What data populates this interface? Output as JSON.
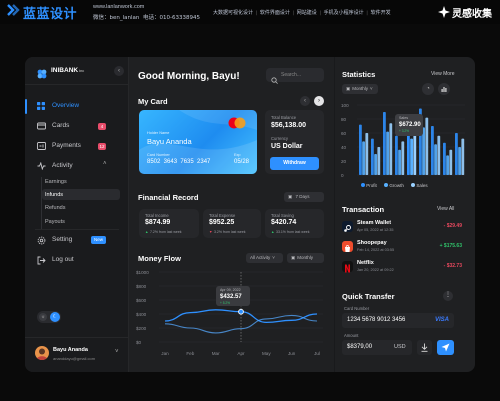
{
  "watermark": {
    "brand_cn": "蓝蓝设计",
    "site": "www.lanlanwork.com",
    "wechat": "微信：ben_lanlan",
    "phone": "电话：010-63338945",
    "services": [
      "大数据可视化设计",
      "软件界面设计",
      "网站建设",
      "手机及小程序设计",
      "软件开发"
    ],
    "right_brand": "灵感收集",
    "colors": {
      "brand": "#2e90ff"
    }
  },
  "brand": {
    "name": "INIBANK",
    "suffix": "inc"
  },
  "sidebar": {
    "items": [
      {
        "label": "Overview",
        "icon": "grid-icon",
        "active": true
      },
      {
        "label": "Cards",
        "icon": "card-icon",
        "badge": "4"
      },
      {
        "label": "Payments",
        "icon": "payment-icon",
        "badge": "12"
      },
      {
        "label": "Activity",
        "icon": "activity-icon"
      }
    ],
    "activity_sub": [
      "Earnings",
      "Infunds",
      "Refunds",
      "Payouts"
    ],
    "settings": {
      "label": "Setting",
      "badge": "New"
    },
    "logout": "Log out",
    "user": {
      "name": "Bayu Ananda",
      "email": "ananddayu@gmail.com"
    }
  },
  "header": {
    "greeting": "Good Morning, Bayu!",
    "search_placeholder": "Search..."
  },
  "mycard": {
    "title": "My Card",
    "holder_label": "Holder Name",
    "holder": "Bayu Ananda",
    "number_label": "Card Number",
    "number": "8502  3643  7635  2347",
    "exp_label": "Exp",
    "exp": "05/28",
    "balance_label": "Total Balance",
    "balance": "$56,138.00",
    "currency_label": "Currency",
    "currency": "US Dollar",
    "withdraw": "Withdraw"
  },
  "financial": {
    "title": "Financial Record",
    "range": "7 Days",
    "items": [
      {
        "label": "Total Income",
        "value": "$874.99",
        "delta": "7.2% from last week",
        "up": true
      },
      {
        "label": "Total Expense",
        "value": "$952.25",
        "delta": "3.2% from last week",
        "up": false
      },
      {
        "label": "Total Saving",
        "value": "$420.74",
        "delta": "33.1% from last week",
        "up": true
      }
    ]
  },
  "moneyflow": {
    "title": "Money Flow",
    "filter1": "All Activity",
    "filter2": "Monthly",
    "tooltip_date": "Apr 09, 2022",
    "tooltip_value": "$432.57",
    "tooltip_delta": "+ 5.2%"
  },
  "statistics": {
    "title": "Statistics",
    "view_more": "View More",
    "period": "Monthly",
    "tooltip_label": "Sales",
    "tooltip_value": "$672.90",
    "tooltip_sub": "+ 3.2%",
    "legend": [
      "Profit",
      "Growth",
      "Sales"
    ]
  },
  "transaction": {
    "title": "Transaction",
    "view_all": "View All",
    "items": [
      {
        "name": "Steam Wallet",
        "date": "Apr 05, 2022 at 12:35",
        "amount": "- $29.49",
        "color": "#e8485e"
      },
      {
        "name": "Shoopepay",
        "date": "Feb 14, 2022 at 03:55",
        "amount": "+ $175.63",
        "color": "#30c36b"
      },
      {
        "name": "Netflix",
        "date": "Jan 20, 2022 at 09:22",
        "amount": "- $32.73",
        "color": "#e8485e"
      }
    ]
  },
  "quicktransfer": {
    "title": "Quick Transfer",
    "card_label": "Card Number",
    "card_value": "1234 5678 9012 3456",
    "card_brand": "VISA",
    "amount_label": "Amount",
    "amount_value": "$8379,00",
    "currency": "USD"
  },
  "chart_data": [
    {
      "type": "line",
      "title": "Money Flow",
      "categories": [
        "Jan",
        "Feb",
        "Mar",
        "Apr",
        "May",
        "Jun",
        "Jul"
      ],
      "series": [
        {
          "values": [
            300,
            420,
            460,
            432.57,
            280,
            310,
            400
          ],
          "color": "#2e90ff"
        },
        {
          "values": [
            260,
            200,
            130,
            190,
            330,
            380,
            300
          ],
          "color": "#56a8ff"
        }
      ],
      "ylabels": [
        "$1000",
        "$800",
        "$600",
        "$400",
        "$200",
        "$0"
      ],
      "ylim": [
        0,
        1000
      ]
    },
    {
      "type": "bar",
      "title": "Statistics",
      "ylabels": [
        "100",
        "80",
        "60",
        "40",
        "20",
        "0"
      ],
      "ylim": [
        0,
        100
      ],
      "series": [
        {
          "name": "Profit",
          "values": [
            72,
            52,
            90,
            56,
            70,
            95,
            70,
            46,
            60
          ],
          "color": "#2e90ff"
        },
        {
          "name": "Growth",
          "values": [
            48,
            30,
            62,
            36,
            52,
            68,
            44,
            28,
            40
          ],
          "color": "#58b0ff"
        },
        {
          "name": "Sales",
          "values": [
            60,
            40,
            74,
            48,
            62,
            82,
            56,
            36,
            52
          ],
          "color": "#9ad0ff"
        }
      ]
    }
  ]
}
